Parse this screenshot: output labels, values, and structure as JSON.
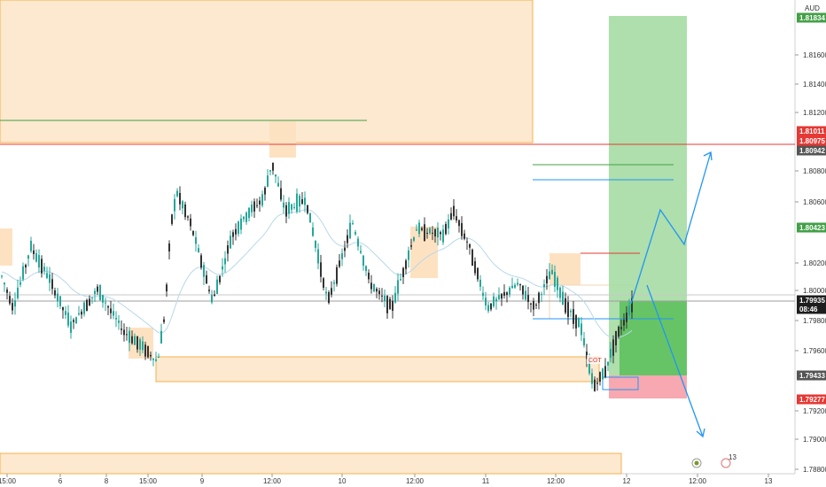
{
  "symbol_currency": "AUD",
  "colors": {
    "bull": "#26a69a",
    "bear": "#333333",
    "zone_fill": "#fde9cf",
    "zone_border": "#f6b04d",
    "target_fill": "#a5dca3",
    "target_fill_dark": "#66c466",
    "stop_fill": "#f7a8b0",
    "projection": "#2196f3",
    "red_line": "#e53935",
    "green_line": "#43a047"
  },
  "chart_data": {
    "type": "candlestick",
    "title": "",
    "xlabel": "",
    "ylabel": "",
    "ylim": [
      1.7876,
      1.8196
    ],
    "y_ticks": [
      "1.81600",
      "1.81400",
      "1.81200",
      "1.80800",
      "1.80600",
      "1.80200",
      "1.80000",
      "1.79800",
      "1.79600",
      "1.79200",
      "1.79000",
      "1.78800"
    ],
    "x_ticks": [
      "15:00",
      "6",
      "8",
      "15:00",
      "9",
      "12:00",
      "10",
      "12:00",
      "11",
      "12:00",
      "12",
      "12:00",
      "13"
    ],
    "price_tags": [
      {
        "text": "1.81834",
        "color": "#43a047"
      },
      {
        "text": "1.81011",
        "color": "#e53935"
      },
      {
        "text": "1.80975",
        "color": "#e53935"
      },
      {
        "text": "1.80942",
        "color": "#555555"
      },
      {
        "text": "1.80423",
        "color": "#43a047"
      },
      {
        "text": "1.79935",
        "color": "#1e1e1e"
      },
      {
        "text": "08:46",
        "color": "#1e1e1e"
      },
      {
        "text": "1.79433",
        "color": "#555555"
      },
      {
        "text": "1.79277",
        "color": "#e53935"
      }
    ],
    "annotations": [
      "COT"
    ],
    "event_badges": [
      {
        "text": "13"
      }
    ],
    "key_levels": {
      "resistance_line": 1.8096,
      "current_price": 1.79935,
      "entry": 1.79433,
      "stop": 1.79277,
      "target": 1.81834
    },
    "path_waypoints": [
      {
        "x": 0,
        "y": 1.802
      },
      {
        "x": 15,
        "y": 1.799
      },
      {
        "x": 35,
        "y": 1.804
      },
      {
        "x": 55,
        "y": 1.8015
      },
      {
        "x": 80,
        "y": 1.7975
      },
      {
        "x": 110,
        "y": 1.8005
      },
      {
        "x": 140,
        "y": 1.797
      },
      {
        "x": 165,
        "y": 1.7955
      },
      {
        "x": 178,
        "y": 1.7945
      },
      {
        "x": 186,
        "y": 1.7985
      },
      {
        "x": 193,
        "y": 1.806
      },
      {
        "x": 200,
        "y": 1.8085
      },
      {
        "x": 215,
        "y": 1.806
      },
      {
        "x": 240,
        "y": 1.7995
      },
      {
        "x": 262,
        "y": 1.805
      },
      {
        "x": 282,
        "y": 1.807
      },
      {
        "x": 297,
        "y": 1.808
      },
      {
        "x": 307,
        "y": 1.811
      },
      {
        "x": 322,
        "y": 1.807
      },
      {
        "x": 345,
        "y": 1.808
      },
      {
        "x": 370,
        "y": 1.7995
      },
      {
        "x": 398,
        "y": 1.806
      },
      {
        "x": 418,
        "y": 1.801
      },
      {
        "x": 442,
        "y": 1.799
      },
      {
        "x": 470,
        "y": 1.8055
      },
      {
        "x": 500,
        "y": 1.805
      },
      {
        "x": 512,
        "y": 1.807
      },
      {
        "x": 530,
        "y": 1.804
      },
      {
        "x": 550,
        "y": 1.799
      },
      {
        "x": 585,
        "y": 1.801
      },
      {
        "x": 603,
        "y": 1.799
      },
      {
        "x": 622,
        "y": 1.802
      },
      {
        "x": 640,
        "y": 1.799
      },
      {
        "x": 655,
        "y": 1.7975
      },
      {
        "x": 662,
        "y": 1.795
      },
      {
        "x": 670,
        "y": 1.7925
      },
      {
        "x": 683,
        "y": 1.7938
      },
      {
        "x": 695,
        "y": 1.7965
      },
      {
        "x": 705,
        "y": 1.798
      },
      {
        "x": 713,
        "y": 1.7993
      }
    ]
  }
}
